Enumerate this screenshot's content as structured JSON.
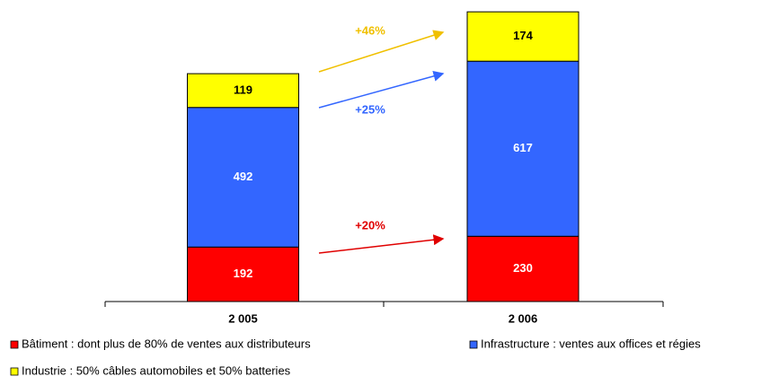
{
  "chart_data": {
    "type": "stacked_bar",
    "categories": [
      "2 005",
      "2 006"
    ],
    "series": [
      {
        "name": "Bâtiment : dont plus de 80% de ventes aux distributeurs",
        "color": "#ff0000",
        "label_color": "#ffffff",
        "values": [
          192,
          230
        ]
      },
      {
        "name": "Infrastructure : ventes aux offices et régies",
        "color": "#3366ff",
        "label_color": "#ffffff",
        "values": [
          492,
          617
        ]
      },
      {
        "name": "Industrie : 50% câbles automobiles et 50% batteries",
        "color": "#ffff00",
        "label_color": "#000000",
        "values": [
          119,
          174
        ]
      }
    ],
    "ylim": [
      0,
      1050
    ],
    "annotations": [
      {
        "text": "+20%",
        "color": "#e00000"
      },
      {
        "text": "+25%",
        "color": "#3366ff"
      },
      {
        "text": "+46%",
        "color": "#f0c000"
      }
    ]
  }
}
